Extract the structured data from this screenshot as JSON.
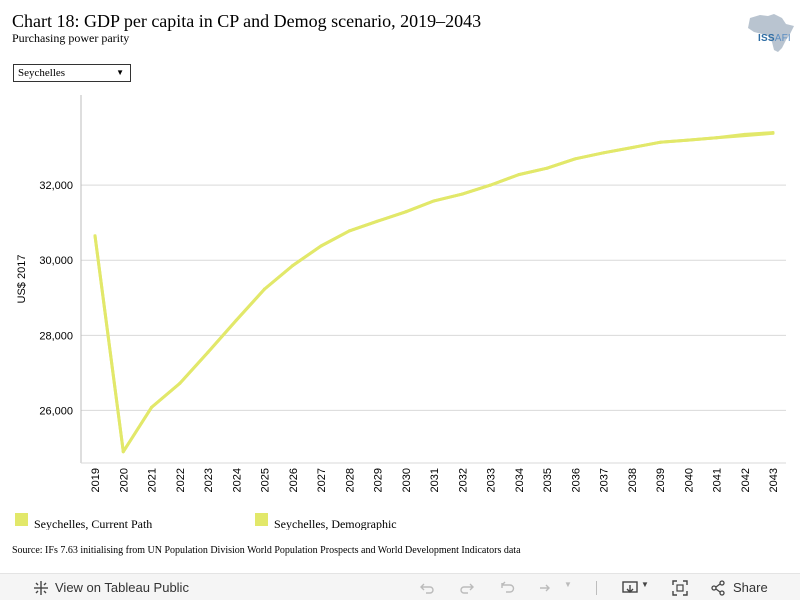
{
  "header": {
    "title": "Chart 18: GDP per capita in CP and Demog scenario, 2019–2043",
    "subtitle": "Purchasing power parity",
    "logo_text_main": "ISS",
    "logo_text_sub": "AFI"
  },
  "filter": {
    "selected": "Seychelles"
  },
  "chart_data": {
    "type": "line",
    "ylabel": "US$ 2017",
    "ylim": [
      24600,
      34400
    ],
    "yticks": [
      26000,
      28000,
      30000,
      32000
    ],
    "ytick_labels": [
      "26,000",
      "28,000",
      "30,000",
      "32,000"
    ],
    "grid": true,
    "legend_position": "bottom",
    "x": [
      "2019",
      "2020",
      "2021",
      "2022",
      "2023",
      "2024",
      "2025",
      "2026",
      "2027",
      "2028",
      "2029",
      "2030",
      "2031",
      "2032",
      "2033",
      "2034",
      "2035",
      "2036",
      "2037",
      "2038",
      "2039",
      "2040",
      "2041",
      "2042",
      "2043"
    ],
    "series": [
      {
        "name": "Seychelles, Current Path",
        "color": "#e2e86a",
        "values": [
          30650,
          24900,
          26080,
          26720,
          27550,
          28400,
          29230,
          29860,
          30380,
          30780,
          31040,
          31290,
          31580,
          31760,
          32000,
          32280,
          32450,
          32700,
          32860,
          33000,
          33140,
          33200,
          33260,
          33320,
          33380
        ]
      },
      {
        "name": "Seychelles, Demographic",
        "color": "#e2e86a",
        "values": [
          30650,
          24900,
          26080,
          26720,
          27550,
          28400,
          29230,
          29860,
          30380,
          30780,
          31040,
          31290,
          31580,
          31760,
          32000,
          32280,
          32450,
          32700,
          32860,
          33000,
          33140,
          33200,
          33260,
          33350,
          33400
        ]
      }
    ]
  },
  "source": "Source: IFs 7.63 initialising from UN Population Division World Population Prospects and World Development Indicators data",
  "toolbar": {
    "view_label": "View on Tableau Public",
    "share_label": "Share",
    "icons": [
      "tableau-icon",
      "undo-icon",
      "redo-icon",
      "revert-icon",
      "refresh-icon",
      "download-icon",
      "fullscreen-icon",
      "share-icon"
    ]
  }
}
